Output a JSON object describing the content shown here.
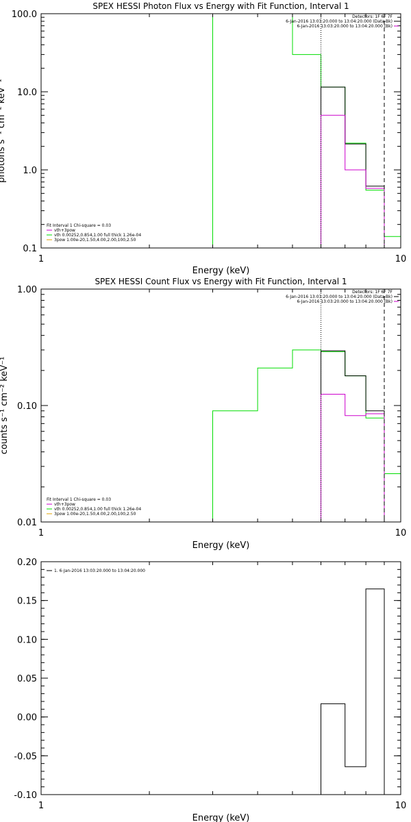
{
  "colors": {
    "background": "#ffffff",
    "axes": "#000000",
    "total": "#000000",
    "model_a": "#cc00cc",
    "model_b": "#00dd00",
    "model_c": "#e0a000"
  },
  "chart_data": [
    {
      "type": "line",
      "title": "SPEX HESSI Photon Flux vs Energy with Fit Function, Interval 1",
      "xlabel": "Energy (keV)",
      "ylabel": "photons s⁻¹ cm⁻² keV⁻¹",
      "xscale": "log",
      "yscale": "log",
      "xlim": [
        1,
        10
      ],
      "ylim": [
        0.1,
        100
      ],
      "xticks": [
        {
          "v": 1,
          "label": "1"
        },
        {
          "v": 10,
          "label": "10"
        }
      ],
      "yticks": [
        {
          "v": 0.1,
          "label": "0.1"
        },
        {
          "v": 1,
          "label": "1.0"
        },
        {
          "v": 10,
          "label": "10.0"
        },
        {
          "v": 100,
          "label": "100.0"
        }
      ],
      "vlines": [
        {
          "x": 6.0,
          "style": "dotted"
        },
        {
          "x": 9.0,
          "style": "dashed"
        }
      ],
      "header": [
        "Detectors: 1F 6F 7F",
        "6-Jan-2016 13:03:20.000 to 13:04:20.000 (Data-Bk)",
        "6-Jan-2016 13:03:20.000 to 13:04:20.000 (Bk)"
      ],
      "header_colors": [
        "",
        "#000000",
        "#cc00cc"
      ],
      "legend": [
        "Fit Interval 1   Chi-square = 0.03",
        "vth+3pow",
        "vth 0.00252,0.854,1.00  full thick 1.26e-04",
        "3pow 1.00e-20,1.50,4.00,2.00,100,2.50"
      ],
      "legend_colors": [
        "",
        "#cc00cc",
        "#00dd00",
        "#e0a000"
      ],
      "series": [
        {
          "color": "#00dd00",
          "points": [
            [
              3.0,
              0.1
            ],
            [
              3.0,
              100
            ],
            [
              4.0,
              100
            ],
            [
              4.0,
              100
            ],
            [
              5.0,
              100
            ],
            [
              5.0,
              30
            ],
            [
              6.0,
              30
            ],
            [
              6.0,
              11.5
            ],
            [
              7.0,
              11.5
            ],
            [
              7.0,
              2.2
            ],
            [
              8.0,
              2.2
            ],
            [
              8.0,
              0.55
            ],
            [
              9.0,
              0.55
            ],
            [
              9.0,
              0.14
            ],
            [
              10.0,
              0.14
            ]
          ]
        },
        {
          "color": "#000000",
          "points": [
            [
              6.0,
              0.1
            ],
            [
              6.0,
              11.5
            ],
            [
              7.0,
              11.5
            ],
            [
              7.0,
              2.15
            ],
            [
              8.0,
              2.15
            ],
            [
              8.0,
              0.62
            ],
            [
              9.0,
              0.62
            ],
            [
              9.0,
              0.1
            ]
          ]
        },
        {
          "color": "#cc00cc",
          "points": [
            [
              6.0,
              0.1
            ],
            [
              6.0,
              5.0
            ],
            [
              7.0,
              5.0
            ],
            [
              7.0,
              1.0
            ],
            [
              8.0,
              1.0
            ],
            [
              8.0,
              0.58
            ],
            [
              9.0,
              0.58
            ],
            [
              9.0,
              0.1
            ]
          ]
        }
      ]
    },
    {
      "type": "line",
      "title": "SPEX HESSI Count Flux vs Energy with Fit Function, Interval 1",
      "xlabel": "Energy (keV)",
      "ylabel": "counts s⁻¹ cm⁻² keV⁻¹",
      "xscale": "log",
      "yscale": "log",
      "xlim": [
        1,
        10
      ],
      "ylim": [
        0.01,
        1
      ],
      "xticks": [
        {
          "v": 1,
          "label": "1"
        },
        {
          "v": 10,
          "label": "10"
        }
      ],
      "yticks": [
        {
          "v": 0.01,
          "label": "0.01"
        },
        {
          "v": 0.1,
          "label": "0.10"
        },
        {
          "v": 1,
          "label": "1.00"
        }
      ],
      "vlines": [
        {
          "x": 6.0,
          "style": "dotted"
        },
        {
          "x": 9.0,
          "style": "dashed"
        }
      ],
      "header": [
        "Detectors: 1F 6F 7F",
        "6-Jan-2016 13:03:20.000 to 13:04:20.000 (Data-Bk)",
        "6-Jan-2016 13:03:20.000 to 13:04:20.000 (Bk)"
      ],
      "header_colors": [
        "",
        "#000000",
        "#cc00cc"
      ],
      "legend": [
        "Fit Interval 1   Chi-square = 0.03",
        "vth+3pow",
        "vth 0.00252,0.854,1.00  full thick 1.26e-04",
        "3pow 1.00e-20,1.50,4.00,2.00,100,2.50"
      ],
      "legend_colors": [
        "",
        "#cc00cc",
        "#00dd00",
        "#e0a000"
      ],
      "series": [
        {
          "color": "#00dd00",
          "points": [
            [
              3.0,
              0.01
            ],
            [
              3.0,
              0.09
            ],
            [
              4.0,
              0.09
            ],
            [
              4.0,
              0.21
            ],
            [
              5.0,
              0.21
            ],
            [
              5.0,
              0.3
            ],
            [
              6.0,
              0.3
            ],
            [
              6.0,
              0.29
            ],
            [
              7.0,
              0.29
            ],
            [
              7.0,
              0.18
            ],
            [
              8.0,
              0.18
            ],
            [
              8.0,
              0.078
            ],
            [
              9.0,
              0.078
            ],
            [
              9.0,
              0.026
            ],
            [
              10.0,
              0.026
            ]
          ]
        },
        {
          "color": "#000000",
          "points": [
            [
              6.0,
              0.01
            ],
            [
              6.0,
              0.295
            ],
            [
              7.0,
              0.295
            ],
            [
              7.0,
              0.18
            ],
            [
              8.0,
              0.18
            ],
            [
              8.0,
              0.09
            ],
            [
              9.0,
              0.09
            ],
            [
              9.0,
              0.01
            ]
          ]
        },
        {
          "color": "#cc00cc",
          "points": [
            [
              6.0,
              0.01
            ],
            [
              6.0,
              0.125
            ],
            [
              7.0,
              0.125
            ],
            [
              7.0,
              0.082
            ],
            [
              8.0,
              0.082
            ],
            [
              8.0,
              0.085
            ],
            [
              9.0,
              0.085
            ],
            [
              9.0,
              0.01
            ]
          ]
        }
      ]
    },
    {
      "type": "line",
      "title": "",
      "xlabel": "Energy (keV)",
      "ylabel": "",
      "xscale": "log",
      "yscale": "linear",
      "xlim": [
        1,
        10
      ],
      "ylim": [
        -0.1,
        0.2
      ],
      "xticks": [
        {
          "v": 1,
          "label": "1"
        },
        {
          "v": 10,
          "label": "10"
        }
      ],
      "yticks": [
        {
          "v": -0.1,
          "label": "-0.10"
        },
        {
          "v": -0.05,
          "label": "-0.05"
        },
        {
          "v": 0,
          "label": "0.00"
        },
        {
          "v": 0.05,
          "label": "0.05"
        },
        {
          "v": 0.1,
          "label": "0.10"
        },
        {
          "v": 0.15,
          "label": "0.15"
        },
        {
          "v": 0.2,
          "label": "0.20"
        }
      ],
      "vlines": [],
      "header": [],
      "header_colors": [],
      "legend": [
        "1.  6-Jan-2016 13:03:20.000 to 13:04:20.000"
      ],
      "legend_colors": [
        "#000000"
      ],
      "series": [
        {
          "color": "#000000",
          "points": [
            [
              6.0,
              -0.1
            ],
            [
              6.0,
              0.017
            ],
            [
              7.0,
              0.017
            ],
            [
              7.0,
              -0.064
            ],
            [
              8.0,
              -0.064
            ],
            [
              8.0,
              0.165
            ],
            [
              9.0,
              0.165
            ],
            [
              9.0,
              -0.1
            ]
          ]
        }
      ]
    }
  ]
}
